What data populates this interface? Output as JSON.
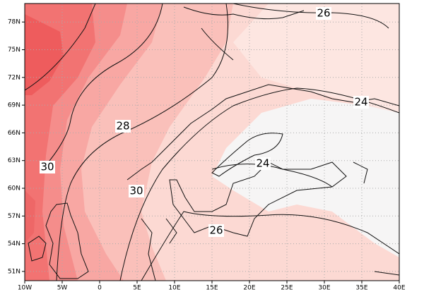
{
  "map": {
    "xlim": [
      -10,
      40
    ],
    "ylim": [
      50,
      80
    ],
    "xticks": [
      {
        "value": -10,
        "label": "10W"
      },
      {
        "value": -5,
        "label": "5W"
      },
      0,
      {
        "value": 5,
        "label": "5E"
      },
      {
        "value": 10,
        "label": "10E"
      },
      {
        "value": 15,
        "label": "15E"
      },
      {
        "value": 20,
        "label": "20E"
      },
      {
        "value": 25,
        "label": "25E"
      },
      {
        "value": 30,
        "label": "30E"
      },
      {
        "value": 35,
        "label": "35E"
      },
      {
        "value": 40,
        "label": "40E"
      }
    ],
    "yticks": [
      {
        "value": 51,
        "label": "51N"
      },
      {
        "value": 54,
        "label": "54N"
      },
      {
        "value": 57,
        "label": "57N"
      },
      {
        "value": 60,
        "label": "60N"
      },
      {
        "value": 63,
        "label": "63N"
      },
      {
        "value": 66,
        "label": "66N"
      },
      {
        "value": 69,
        "label": "69N"
      },
      {
        "value": 72,
        "label": "72N"
      },
      {
        "value": 75,
        "label": "75N"
      },
      {
        "value": 78,
        "label": "78N"
      }
    ],
    "grid": true,
    "contour_labels": [
      26,
      24,
      28,
      30,
      30,
      24,
      26
    ]
  }
}
